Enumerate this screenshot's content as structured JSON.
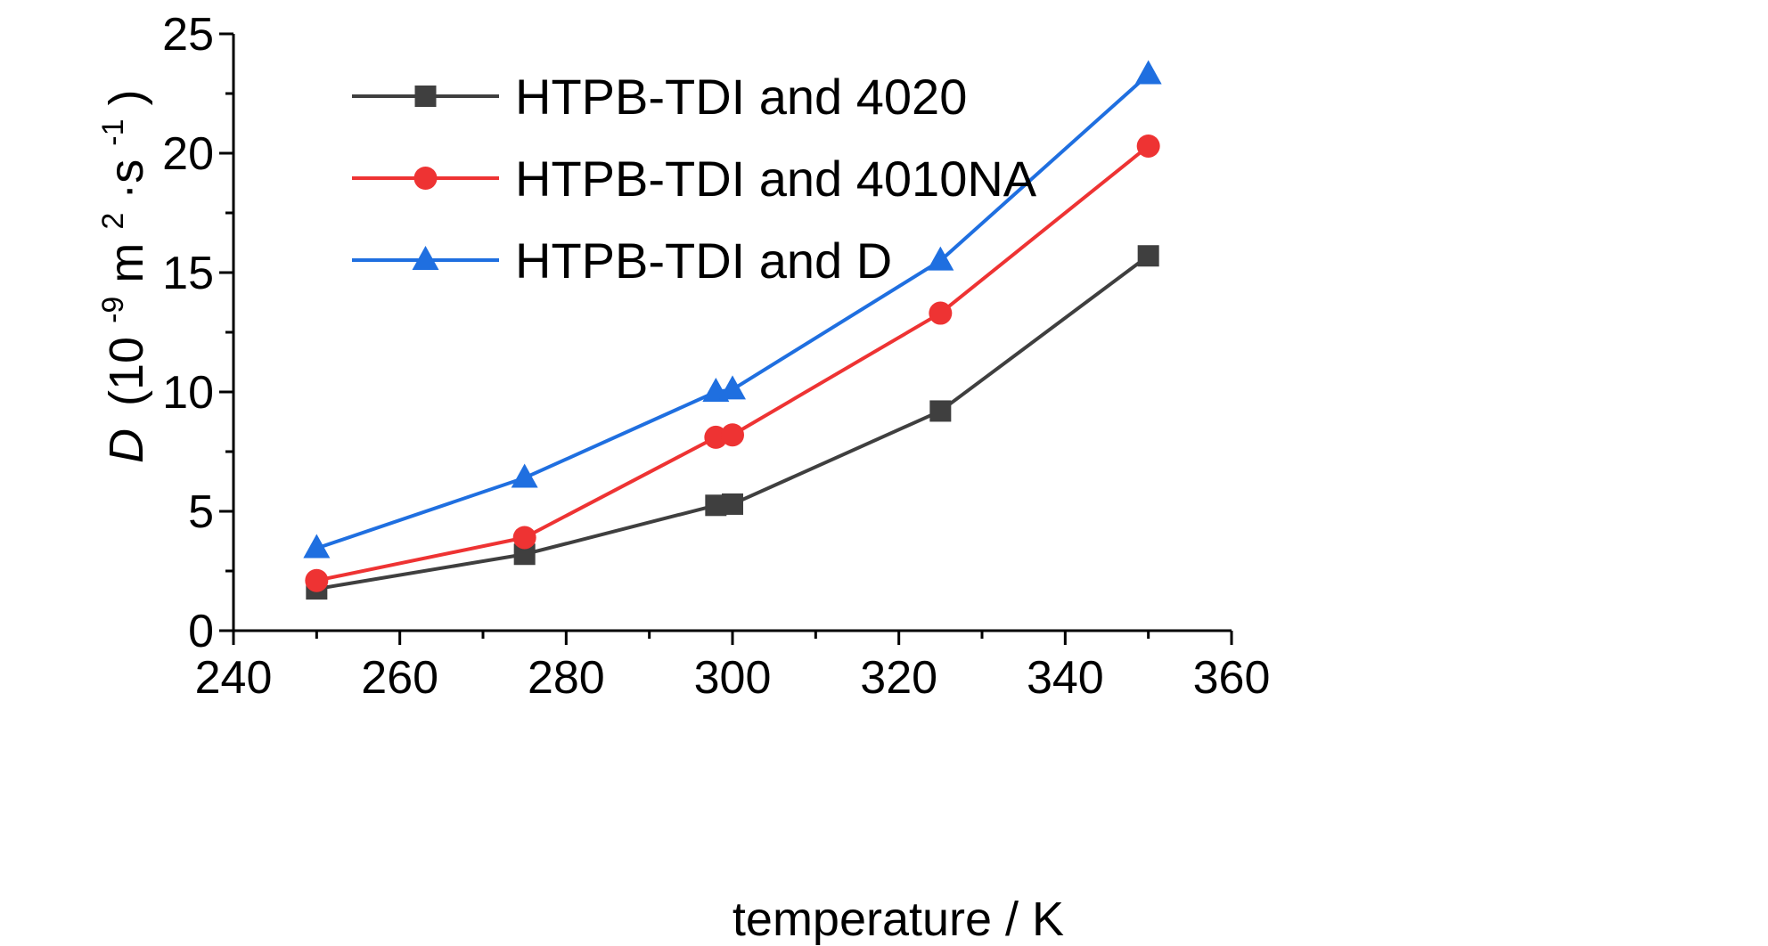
{
  "chart_data": {
    "type": "line",
    "xlabel": "temperature / K",
    "ylabel": {
      "symbol": "D",
      "open": "(10",
      "exp1": "-9",
      "unit1": "m",
      "exp2": "2",
      "dot": "·s",
      "exp3": "-1",
      "close": ")"
    },
    "xlim": [
      240,
      360
    ],
    "ylim": [
      0,
      25
    ],
    "xticks": [
      240,
      260,
      280,
      300,
      320,
      340,
      360
    ],
    "yticks": [
      0,
      5,
      10,
      15,
      20,
      25
    ],
    "grid": false,
    "legend_position": "top-left",
    "series": [
      {
        "name": "HTPB-TDI and 4020",
        "color": "#3f3f3f",
        "marker": "square",
        "x": [
          250,
          275,
          298,
          300,
          325,
          350
        ],
        "y": [
          1.75,
          3.2,
          5.25,
          5.3,
          9.2,
          15.7
        ]
      },
      {
        "name": "HTPB-TDI and 4010NA",
        "color": "#ee3333",
        "marker": "circle",
        "x": [
          250,
          275,
          298,
          300,
          325,
          350
        ],
        "y": [
          2.1,
          3.9,
          8.1,
          8.2,
          13.3,
          20.3
        ]
      },
      {
        "name": "HTPB-TDI and D",
        "color": "#1f6fe0",
        "marker": "triangle",
        "x": [
          250,
          275,
          298,
          300,
          325,
          350
        ],
        "y": [
          3.45,
          6.4,
          10.0,
          10.1,
          15.5,
          23.3
        ]
      }
    ]
  }
}
